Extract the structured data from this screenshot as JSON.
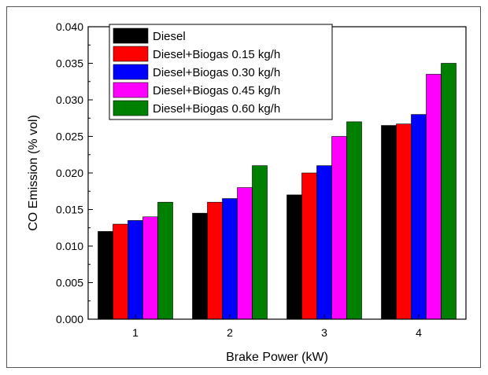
{
  "chart_data": {
    "type": "bar",
    "categories": [
      "1",
      "2",
      "3",
      "4"
    ],
    "series": [
      {
        "name": "Diesel",
        "color": "#000000",
        "values": [
          0.012,
          0.0145,
          0.017,
          0.0265
        ]
      },
      {
        "name": "Diesel+Biogas 0.15 kg/h",
        "color": "#ff0000",
        "values": [
          0.013,
          0.016,
          0.02,
          0.0267
        ]
      },
      {
        "name": "Diesel+Biogas 0.30 kg/h",
        "color": "#0000ff",
        "values": [
          0.0135,
          0.0165,
          0.021,
          0.028
        ]
      },
      {
        "name": "Diesel+Biogas 0.45 kg/h",
        "color": "#ff00ff",
        "values": [
          0.014,
          0.018,
          0.025,
          0.0335
        ]
      },
      {
        "name": "Diesel+Biogas 0.60 kg/h",
        "color": "#008000",
        "values": [
          0.016,
          0.021,
          0.027,
          0.035
        ]
      }
    ],
    "title": "",
    "xlabel": "Brake Power (kW)",
    "ylabel": "CO Emission (% vol)",
    "ylim": [
      0,
      0.04
    ],
    "yticks": [
      "0.000",
      "0.005",
      "0.010",
      "0.015",
      "0.020",
      "0.025",
      "0.030",
      "0.035",
      "0.040"
    ],
    "legend_position": "top-left",
    "grid": false
  }
}
